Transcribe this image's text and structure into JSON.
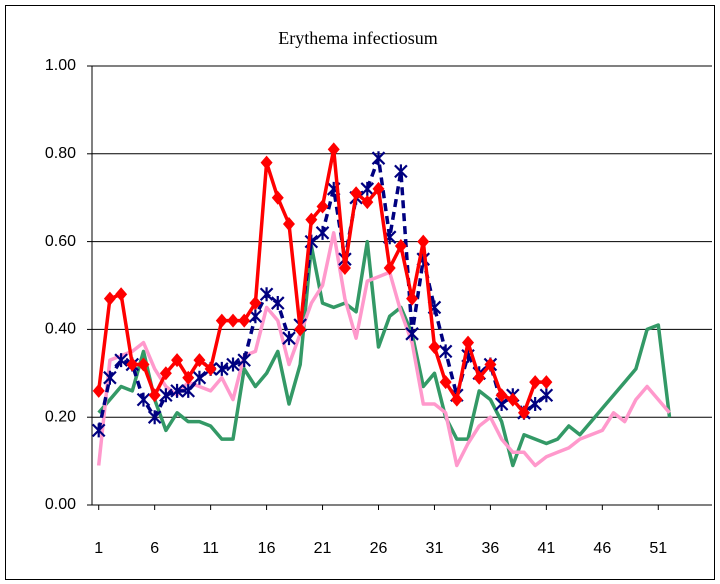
{
  "chart_data": {
    "type": "line",
    "title": "Erythema infectiosum",
    "x": [
      1,
      2,
      3,
      4,
      5,
      6,
      7,
      8,
      9,
      10,
      11,
      12,
      13,
      14,
      15,
      16,
      17,
      18,
      19,
      20,
      21,
      22,
      23,
      24,
      25,
      26,
      27,
      28,
      29,
      30,
      31,
      32,
      33,
      34,
      35,
      36,
      37,
      38,
      39,
      40,
      41,
      42,
      43,
      44,
      45,
      46,
      47,
      48,
      49,
      50,
      51,
      52
    ],
    "xlim": [
      0.4,
      55.8
    ],
    "xticks": [
      1,
      6,
      11,
      16,
      21,
      26,
      31,
      36,
      41,
      46,
      51
    ],
    "ylim": [
      0,
      1
    ],
    "yticks": [
      {
        "value": 0,
        "label": "0.00"
      },
      {
        "value": 0.2,
        "label": "0.20"
      },
      {
        "value": 0.4,
        "label": "0.40"
      },
      {
        "value": 0.6,
        "label": "0.60"
      },
      {
        "value": 0.8,
        "label": "0.80"
      },
      {
        "value": 1,
        "label": "1.00"
      }
    ],
    "grid": true,
    "series": [
      {
        "color": "#339966",
        "marker": "none",
        "dashed": false,
        "values": [
          0.21,
          0.24,
          0.27,
          0.26,
          0.35,
          0.24,
          0.17,
          0.21,
          0.19,
          0.19,
          0.18,
          0.15,
          0.15,
          0.31,
          0.27,
          0.3,
          0.35,
          0.23,
          0.32,
          0.59,
          0.46,
          0.45,
          0.46,
          0.44,
          0.6,
          0.36,
          0.43,
          0.45,
          0.39,
          0.27,
          0.3,
          0.2,
          0.15,
          0.15,
          0.26,
          0.24,
          0.19,
          0.09,
          0.16,
          0.15,
          0.14,
          0.15,
          0.18,
          0.16,
          0.19,
          0.22,
          0.25,
          0.28,
          0.31,
          0.4,
          0.41,
          0.2
        ]
      },
      {
        "color": "#ff99cc",
        "marker": "none",
        "dashed": false,
        "values": [
          0.09,
          0.33,
          0.34,
          0.35,
          0.37,
          0.31,
          0.27,
          0.25,
          0.28,
          0.27,
          0.26,
          0.29,
          0.24,
          0.34,
          0.35,
          0.45,
          0.42,
          0.32,
          0.39,
          0.46,
          0.5,
          0.62,
          0.47,
          0.38,
          0.51,
          0.52,
          0.53,
          0.44,
          0.37,
          0.23,
          0.23,
          0.21,
          0.09,
          0.14,
          0.18,
          0.2,
          0.15,
          0.12,
          0.12,
          0.09,
          0.11,
          0.12,
          0.13,
          0.15,
          0.16,
          0.17,
          0.21,
          0.19,
          0.24,
          0.27,
          0.24,
          0.21
        ]
      },
      {
        "color": "#000080",
        "marker": "asterisk",
        "dashed": true,
        "values": [
          0.17,
          0.29,
          0.33,
          0.32,
          0.24,
          0.2,
          0.25,
          0.26,
          0.26,
          0.29,
          0.31,
          0.31,
          0.32,
          0.33,
          0.43,
          0.48,
          0.46,
          0.38,
          0.41,
          0.6,
          0.62,
          0.72,
          0.56,
          0.7,
          0.72,
          0.79,
          0.61,
          0.76,
          0.39,
          0.56,
          0.45,
          0.35,
          0.25,
          0.34,
          0.3,
          0.32,
          0.23,
          0.25,
          0.21,
          0.23,
          0.25,
          null,
          null,
          null,
          null,
          null,
          null,
          null,
          null,
          null,
          null,
          null
        ]
      },
      {
        "color": "#ff0000",
        "marker": "diamond",
        "dashed": false,
        "values": [
          0.26,
          0.47,
          0.48,
          0.32,
          0.32,
          0.25,
          0.3,
          0.33,
          0.29,
          0.33,
          0.31,
          0.42,
          0.42,
          0.42,
          0.46,
          0.78,
          0.7,
          0.64,
          0.4,
          0.65,
          0.68,
          0.81,
          0.54,
          0.71,
          0.69,
          0.72,
          0.54,
          0.59,
          0.47,
          0.6,
          0.36,
          0.28,
          0.24,
          0.37,
          0.29,
          0.32,
          0.25,
          0.24,
          0.21,
          0.28,
          0.28,
          null,
          null,
          null,
          null,
          null,
          null,
          null,
          null,
          null,
          null,
          null
        ]
      }
    ]
  }
}
